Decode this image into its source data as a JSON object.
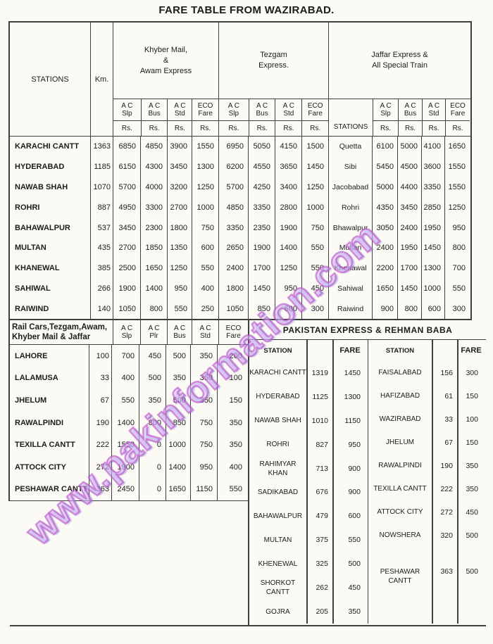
{
  "title": "FARE TABLE FROM WAZIRABAD.",
  "watermark": "www.pakinformation.com",
  "labels": {
    "stations": "STATIONS",
    "km": "Km.",
    "rs": "Rs.",
    "station": "STATION",
    "fare": "FARE"
  },
  "upper": {
    "sections": [
      {
        "title_lines": [
          "Khyber Mail,",
          "&",
          "Awam Express"
        ],
        "cols": [
          [
            "A C",
            "Slp"
          ],
          [
            "A C",
            "Bus"
          ],
          [
            "A C",
            "Std"
          ],
          [
            "ECO",
            "Fare"
          ]
        ]
      },
      {
        "title_lines": [
          "Tezgam",
          "Express."
        ],
        "cols": [
          [
            "A C",
            "Slp"
          ],
          [
            "A C",
            "Bus"
          ],
          [
            "A C",
            "Std"
          ],
          [
            "ECO",
            "Fare"
          ]
        ]
      },
      {
        "title_lines": [
          "Jaffar  Express &",
          "All Special Train"
        ],
        "cols": [
          [
            "A C",
            "Slp"
          ],
          [
            "A C",
            "Bus"
          ],
          [
            "A C",
            "Std"
          ],
          [
            "ECO",
            "Fare"
          ]
        ]
      }
    ],
    "rows": [
      {
        "station": "KARACHI CANTT",
        "km": "1363",
        "fares": [
          "6850",
          "4850",
          "3900",
          "1550",
          "6950",
          "5050",
          "4150",
          "1500"
        ],
        "station2": "Quetta",
        "fares2": [
          "6100",
          "5000",
          "4100",
          "1650"
        ]
      },
      {
        "station": "HYDERABAD",
        "km": "1185",
        "fares": [
          "6150",
          "4300",
          "3450",
          "1300",
          "6200",
          "4550",
          "3650",
          "1450"
        ],
        "station2": "Sibi",
        "fares2": [
          "5450",
          "4500",
          "3600",
          "1550"
        ]
      },
      {
        "station": "NAWAB SHAH",
        "km": "1070",
        "fares": [
          "5700",
          "4000",
          "3200",
          "1250",
          "5700",
          "4250",
          "3400",
          "1250"
        ],
        "station2": "Jacobabad",
        "fares2": [
          "5000",
          "4400",
          "3350",
          "1550"
        ]
      },
      {
        "station": "ROHRI",
        "km": "887",
        "fares": [
          "4950",
          "3300",
          "2700",
          "1000",
          "4850",
          "3350",
          "2800",
          "1000"
        ],
        "station2": "Rohri",
        "fares2": [
          "4350",
          "3450",
          "2850",
          "1250"
        ]
      },
      {
        "station": "BAHAWALPUR",
        "km": "537",
        "fares": [
          "3450",
          "2300",
          "1800",
          "750",
          "3350",
          "2350",
          "1900",
          "750"
        ],
        "station2": "Bhawalpur",
        "fares2": [
          "3050",
          "2400",
          "1950",
          "950"
        ]
      },
      {
        "station": "MULTAN",
        "km": "435",
        "fares": [
          "2700",
          "1850",
          "1350",
          "600",
          "2650",
          "1900",
          "1400",
          "550"
        ],
        "station2": "Multan",
        "fares2": [
          "2400",
          "1950",
          "1450",
          "800"
        ]
      },
      {
        "station": "KHANEWAL",
        "km": "385",
        "fares": [
          "2500",
          "1650",
          "1250",
          "550",
          "2400",
          "1700",
          "1250",
          "550"
        ],
        "station2": "Khenawal",
        "fares2": [
          "2200",
          "1700",
          "1300",
          "700"
        ]
      },
      {
        "station": "SAHIWAL",
        "km": "266",
        "fares": [
          "1900",
          "1400",
          "950",
          "400",
          "1800",
          "1450",
          "950",
          "450"
        ],
        "station2": "Sahiwal",
        "fares2": [
          "1650",
          "1450",
          "1000",
          "550"
        ]
      },
      {
        "station": "RAIWIND",
        "km": "140",
        "fares": [
          "1050",
          "800",
          "550",
          "250",
          "1050",
          "850",
          "600",
          "300"
        ],
        "station2": "Raiwind",
        "fares2": [
          "900",
          "800",
          "600",
          "300"
        ]
      }
    ]
  },
  "middle": {
    "left_title_lines": [
      "Rail Cars,Tezgam,Awam,",
      "Khyber Mail & Jaffar"
    ],
    "left_cols": [
      [
        "A C",
        "Slp"
      ],
      [
        "A C",
        "Plr"
      ],
      [
        "A C",
        "Bus"
      ],
      [
        "A C",
        "Std"
      ],
      [
        "ECO",
        "Fare"
      ]
    ],
    "banner": "PAKISTAN EXPRESS & REHMAN BABA"
  },
  "lower_left_rows": [
    {
      "station": "LAHORE",
      "km": "100",
      "fares": [
        "700",
        "450",
        "500",
        "350",
        "200"
      ]
    },
    {
      "station": "LALAMUSA",
      "km": "33",
      "fares": [
        "400",
        "500",
        "350",
        "350",
        "100"
      ]
    },
    {
      "station": "JHELUM",
      "km": "67",
      "fares": [
        "550",
        "350",
        "500",
        "350",
        "150"
      ]
    },
    {
      "station": "RAWALPINDI",
      "km": "190",
      "fares": [
        "1400",
        "800",
        "850",
        "750",
        "350"
      ]
    },
    {
      "station": "TEXILLA CANTT",
      "km": "222",
      "fares": [
        "1550",
        "0",
        "1000",
        "750",
        "350"
      ]
    },
    {
      "station": "ATTOCK CITY",
      "km": "272",
      "fares": [
        "1900",
        "0",
        "1400",
        "950",
        "400"
      ]
    },
    {
      "station": "PESHAWAR CANTT",
      "km": "363",
      "fares": [
        "2450",
        "0",
        "1650",
        "1150",
        "550"
      ]
    }
  ],
  "pakistan_express": {
    "col1_rows": [
      {
        "station": "KARACHI CANTT",
        "km": "1319",
        "fare": "1450"
      },
      {
        "station": "HYDERABAD",
        "km": "1125",
        "fare": "1300"
      },
      {
        "station": "NAWAB SHAH",
        "km": "1010",
        "fare": "1150"
      },
      {
        "station": "ROHRI",
        "km": "827",
        "fare": "950"
      },
      {
        "station": "RAHIMYAR KHAN",
        "km": "713",
        "fare": "900"
      },
      {
        "station": "SADIKABAD",
        "km": "676",
        "fare": "900"
      },
      {
        "station": "BAHAWALPUR",
        "km": "479",
        "fare": "600"
      },
      {
        "station": "MULTAN",
        "km": "375",
        "fare": "550"
      },
      {
        "station": "KHENEWAL",
        "km": "325",
        "fare": "500"
      },
      {
        "station": "SHORKOT CANTT",
        "km": "262",
        "fare": "450"
      },
      {
        "station": "GOJRA",
        "km": "205",
        "fare": "350"
      }
    ],
    "col2_rows": [
      {
        "station": "FAISALABAD",
        "km": "156",
        "fare": "300"
      },
      {
        "station": "HAFIZABAD",
        "km": "61",
        "fare": "150"
      },
      {
        "station": "WAZIRABAD",
        "km": "33",
        "fare": "100"
      },
      {
        "station": "JHELUM",
        "km": "67",
        "fare": "150"
      },
      {
        "station": "RAWALPINDI",
        "km": "190",
        "fare": "350"
      },
      {
        "station": "TEXILLA CANTT",
        "km": "222",
        "fare": "350"
      },
      {
        "station": "ATTOCK CITY",
        "km": "272",
        "fare": "450"
      },
      {
        "station": "NOWSHERA",
        "km": "320",
        "fare": "500"
      },
      {
        "station": "PESHAWAR CANTT",
        "km": "363",
        "fare": "500"
      }
    ]
  }
}
